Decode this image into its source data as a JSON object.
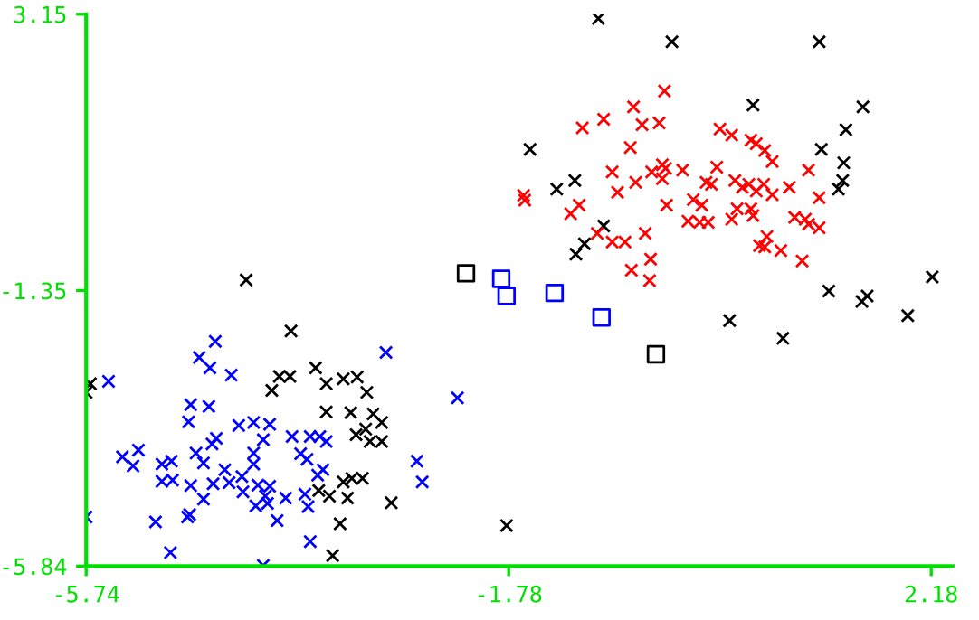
{
  "chart_data": {
    "type": "scatter",
    "xlim": [
      -5.74,
      2.38
    ],
    "ylim": [
      -5.84,
      3.15
    ],
    "xticks": [
      -5.74,
      -1.78,
      2.18
    ],
    "yticks": [
      -5.84,
      -1.35,
      3.15
    ],
    "grid": false,
    "series": [
      {
        "color": "#000000",
        "marker": "cross",
        "x": [
          -5.74,
          -5.7,
          -4.24,
          -3.82,
          -4.0,
          -3.93,
          -3.83,
          -3.59,
          -3.49,
          -3.33,
          -3.2,
          -3.11,
          -3.49,
          -3.26,
          -3.05,
          -2.97,
          -3.12,
          -3.21,
          -3.08,
          -2.97,
          -3.33,
          -3.25,
          -3.15,
          -3.56,
          -3.46,
          -3.29,
          -2.88,
          -3.36,
          -3.43,
          -1.8,
          -0.94,
          -0.25,
          1.13,
          0.51,
          1.54,
          -1.58,
          -1.16,
          -1.33,
          -0.89,
          -1.07,
          -1.15,
          2.19,
          1.22,
          1.58,
          1.53,
          1.96,
          0.29,
          0.79,
          1.38,
          1.15,
          1.36,
          1.35,
          1.31
        ],
        "values": [
          -3.01,
          -2.87,
          -1.18,
          -2.01,
          -2.98,
          -2.75,
          -2.75,
          -2.61,
          -2.87,
          -2.79,
          -2.76,
          -3.01,
          -3.33,
          -3.34,
          -3.36,
          -3.5,
          -3.61,
          -3.7,
          -3.81,
          -3.81,
          -4.47,
          -4.41,
          -4.41,
          -4.61,
          -4.7,
          -4.73,
          -4.81,
          -5.15,
          -5.67,
          -5.18,
          3.08,
          2.7,
          2.7,
          1.67,
          1.64,
          0.95,
          0.44,
          0.3,
          -0.3,
          -0.59,
          -0.76,
          -1.13,
          -1.36,
          -1.44,
          -1.53,
          -1.76,
          -1.84,
          -2.13,
          1.27,
          0.95,
          0.73,
          0.44,
          0.3
        ]
      },
      {
        "color": "#ff0000",
        "marker": "cross",
        "x": [
          -0.32,
          -0.61,
          -0.89,
          -1.09,
          -0.53,
          -0.37,
          0.2,
          -0.64,
          -0.81,
          -0.59,
          -0.44,
          -0.34,
          -0.31,
          -0.34,
          -0.15,
          0.17,
          0.07,
          0.12,
          -1.64,
          -1.63,
          -0.76,
          -1.12,
          -1.2,
          -0.3,
          -0.05,
          0.03,
          -0.1,
          0.01,
          0.09,
          -0.95,
          -0.5,
          -0.81,
          -0.69,
          -0.45,
          -0.63,
          -0.46,
          0.31,
          0.49,
          0.54,
          0.62,
          0.69,
          1.03,
          0.34,
          0.41,
          0.47,
          0.54,
          0.61,
          0.69,
          0.85,
          1.13,
          0.36,
          0.49,
          0.51,
          0.31,
          0.9,
          1.0,
          1.03,
          1.13,
          0.64,
          0.57,
          0.62,
          0.77,
          0.97
        ],
        "values": [
          1.9,
          1.64,
          1.44,
          1.3,
          1.35,
          1.38,
          1.28,
          0.98,
          0.58,
          0.41,
          0.58,
          0.7,
          0.64,
          0.47,
          0.61,
          0.66,
          0.41,
          0.38,
          0.2,
          0.12,
          0.25,
          0.04,
          -0.1,
          0.04,
          0.13,
          0.04,
          -0.22,
          -0.24,
          -0.24,
          -0.42,
          -0.42,
          -0.56,
          -0.56,
          -0.84,
          -1.02,
          -1.19,
          1.18,
          1.1,
          1.04,
          0.93,
          0.75,
          0.61,
          0.44,
          0.33,
          0.38,
          0.27,
          0.38,
          0.21,
          0.33,
          0.16,
          -0.02,
          -0.02,
          -0.13,
          -0.19,
          -0.16,
          -0.19,
          -0.27,
          -0.33,
          -0.47,
          -0.62,
          -0.64,
          -0.7,
          -0.87
        ]
      },
      {
        "color": "#0000ff",
        "marker": "cross",
        "x": [
          -4.53,
          -4.68,
          -4.58,
          -4.38,
          -5.53,
          -4.76,
          -4.59,
          -4.78,
          -4.31,
          -4.17,
          -4.02,
          -4.52,
          -4.56,
          -4.08,
          -3.81,
          -3.64,
          -5.25,
          -5.4,
          -5.3,
          -5.03,
          -4.94,
          -4.71,
          -4.64,
          -4.17,
          -4.17,
          -3.73,
          -3.67,
          -4.44,
          -4.28,
          -5.03,
          -4.93,
          -4.76,
          -4.55,
          -4.4,
          -4.27,
          -4.13,
          -4.02,
          -4.06,
          -4.04,
          -4.15,
          -3.87,
          -3.69,
          -3.66,
          -4.64,
          -4.79,
          -4.77,
          -3.95,
          -5.74,
          -3.64,
          -4.95,
          -4.08,
          -5.09,
          -2.26,
          -2.93,
          -2.64,
          -2.59,
          -3.55,
          -3.49,
          -3.52,
          -3.57
        ],
        "values": [
          -2.18,
          -2.44,
          -2.61,
          -2.73,
          -2.83,
          -3.21,
          -3.24,
          -3.49,
          -3.55,
          -3.5,
          -3.53,
          -3.76,
          -3.85,
          -3.78,
          -3.73,
          -3.73,
          -3.95,
          -4.06,
          -4.21,
          -4.18,
          -4.13,
          -4.0,
          -4.16,
          -4.0,
          -4.18,
          -4.01,
          -4.1,
          -4.27,
          -4.38,
          -4.46,
          -4.44,
          -4.53,
          -4.5,
          -4.48,
          -4.63,
          -4.52,
          -4.54,
          -4.7,
          -4.82,
          -4.86,
          -4.73,
          -4.67,
          -4.87,
          -4.75,
          -5.04,
          -5.0,
          -5.1,
          -5.04,
          -5.44,
          -5.62,
          -5.83,
          -5.12,
          -3.1,
          -2.36,
          -4.13,
          -4.47,
          -3.73,
          -3.81,
          -4.27,
          -4.36
        ]
      },
      {
        "color": "#0000ff",
        "marker": "square",
        "x": [
          -1.85,
          -1.8,
          -1.35,
          -0.91
        ],
        "values": [
          -1.16,
          -1.44,
          -1.39,
          -1.79
        ]
      },
      {
        "color": "#000000",
        "marker": "square",
        "x": [
          -2.18,
          -0.4
        ],
        "values": [
          -1.07,
          -2.39
        ]
      }
    ]
  }
}
